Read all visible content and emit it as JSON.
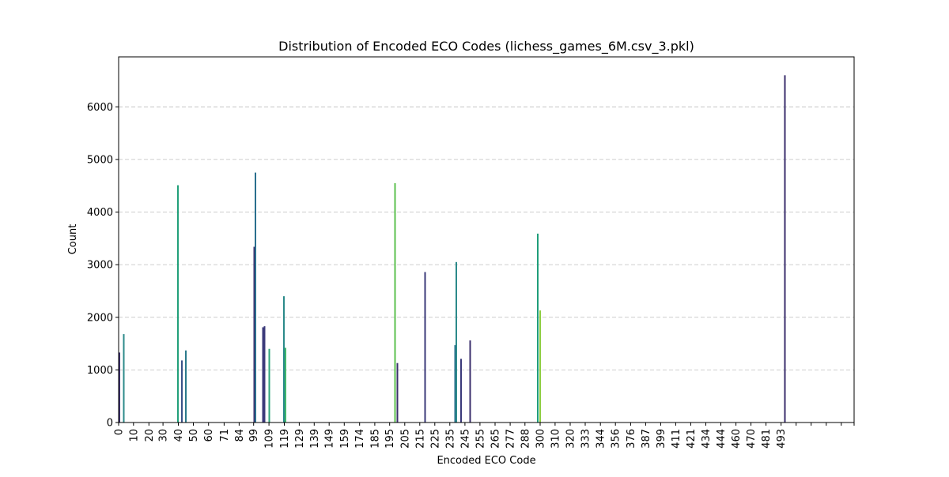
{
  "chart_data": {
    "type": "bar",
    "title": "Distribution of Encoded ECO Codes (lichess_games_6M.csv_3.pkl)",
    "xlabel": "Encoded ECO Code",
    "ylabel": "Count",
    "ylim": [
      0,
      6950
    ],
    "yticks": [
      0,
      1000,
      2000,
      3000,
      4000,
      5000,
      6000
    ],
    "grid": "y-dashed",
    "xtick_labels": [
      "0",
      "10",
      "20",
      "30",
      "40",
      "50",
      "60",
      "71",
      "84",
      "99",
      "109",
      "119",
      "129",
      "139",
      "149",
      "159",
      "174",
      "185",
      "195",
      "205",
      "215",
      "225",
      "235",
      "245",
      "255",
      "265",
      "277",
      "288",
      "300",
      "310",
      "320",
      "333",
      "344",
      "356",
      "376",
      "387",
      "399",
      "411",
      "421",
      "434",
      "444",
      "460",
      "470",
      "481",
      "493",
      "",
      "",
      "",
      "",
      "",
      "",
      "",
      "",
      ""
    ],
    "highlighted_bars": [
      {
        "code": "0",
        "value": 1330,
        "color": "#3b2f6d"
      },
      {
        "code": "3",
        "value": 1680,
        "color": "#2c8a8a"
      },
      {
        "code": "40",
        "value": 4510,
        "color": "#22a07a"
      },
      {
        "code": "42",
        "value": 1180,
        "color": "#3a5288"
      },
      {
        "code": "44",
        "value": 1370,
        "color": "#2b7a8b"
      },
      {
        "code": "99",
        "value": 3340,
        "color": "#3b2f6d"
      },
      {
        "code": "100",
        "value": 4750,
        "color": "#2a6f8e"
      },
      {
        "code": "103",
        "value": 1810,
        "color": "#3b3a7a"
      },
      {
        "code": "104",
        "value": 1830,
        "color": "#3b3a7a"
      },
      {
        "code": "107",
        "value": 1400,
        "color": "#2ea47a"
      },
      {
        "code": "116",
        "value": 2400,
        "color": "#2b8a8a"
      },
      {
        "code": "117",
        "value": 1420,
        "color": "#3fb86a"
      },
      {
        "code": "200",
        "value": 4550,
        "color": "#5cc04f"
      },
      {
        "code": "201",
        "value": 1130,
        "color": "#3b2f6d"
      },
      {
        "code": "222",
        "value": 2860,
        "color": "#3b3a7a"
      },
      {
        "code": "240",
        "value": 1470,
        "color": "#2a6f8e"
      },
      {
        "code": "241",
        "value": 3050,
        "color": "#2b8a8a"
      },
      {
        "code": "243",
        "value": 1210,
        "color": "#3b3a7a"
      },
      {
        "code": "246",
        "value": 1560,
        "color": "#3b2f6d"
      },
      {
        "code": "300",
        "value": 3590,
        "color": "#1f9e7a"
      },
      {
        "code": "301",
        "value": 2130,
        "color": "#8ccd3e"
      },
      {
        "code": "497",
        "value": 6600,
        "color": "#3b2f6d"
      }
    ]
  }
}
